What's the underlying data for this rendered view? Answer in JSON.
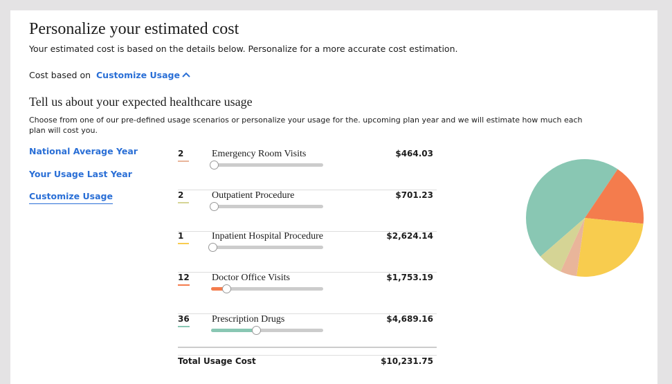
{
  "header": {
    "title": "Personalize your estimated cost",
    "subtitle": "Your estimated cost is based on the details below. Personalize for a more accurate cost estimation.",
    "cost_based_on": "Cost based on",
    "cost_mode": "Customize Usage"
  },
  "section": {
    "title": "Tell us about your expected healthcare usage",
    "description": "Choose from one of our pre-defined usage scenarios or personalize your usage for the. upcoming plan year and we will estimate how much each plan will cost you."
  },
  "nav": [
    "National Average Year",
    "Your Usage Last Year",
    "Customize Usage"
  ],
  "items": [
    {
      "count": 2,
      "name": "Emergency Room Visits",
      "cost": 464.03,
      "cost_label": "$464.03",
      "color": "#e9b59a"
    },
    {
      "count": 2,
      "name": "Outpatient Procedure",
      "cost": 701.23,
      "cost_label": "$701.23",
      "color": "#d5d495"
    },
    {
      "count": 1,
      "name": "Inpatient Hospital Procedure",
      "cost": 2624.14,
      "cost_label": "$2,624.14",
      "color": "#f8cc4e"
    },
    {
      "count": 12,
      "name": "Doctor Office Visits",
      "cost": 1753.19,
      "cost_label": "$1,753.19",
      "color": "#f47c4d"
    },
    {
      "count": 36,
      "name": "Prescription Drugs",
      "cost": 4689.16,
      "cost_label": "$4,689.16",
      "color": "#89c7b3"
    }
  ],
  "total": {
    "label": "Total Usage Cost",
    "value": "$10,231.75"
  }
}
